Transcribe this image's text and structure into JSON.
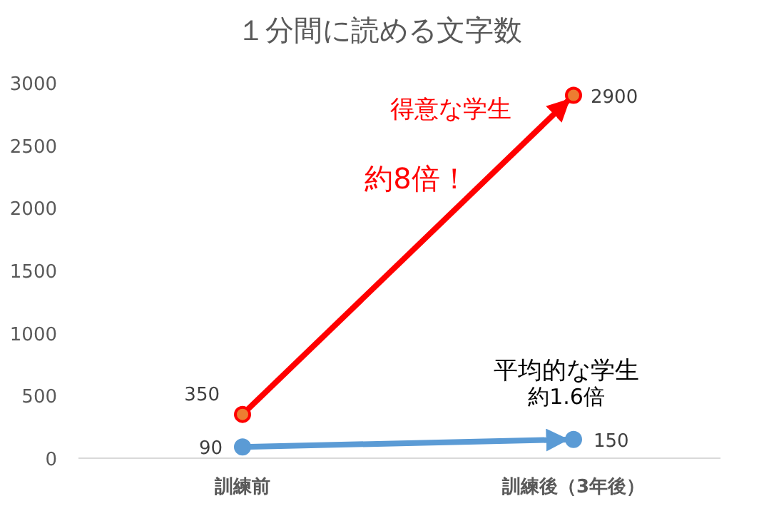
{
  "chart_data": {
    "type": "line",
    "title": "１分間に読める文字数",
    "categories": [
      "訓練前",
      "訓練後（3年後）"
    ],
    "series": [
      {
        "name": "得意な学生",
        "color": "#ff0000",
        "values": [
          350,
          2900
        ]
      },
      {
        "name": "平均的な学生",
        "color": "#5b9bd5",
        "values": [
          90,
          150
        ]
      }
    ],
    "ylim": [
      0,
      3000
    ],
    "yticks": [
      0,
      500,
      1000,
      1500,
      2000,
      2500,
      3000
    ],
    "marker": "circle",
    "data_labels": true,
    "annotations": [
      "約8倍！",
      "約1.6倍"
    ]
  }
}
